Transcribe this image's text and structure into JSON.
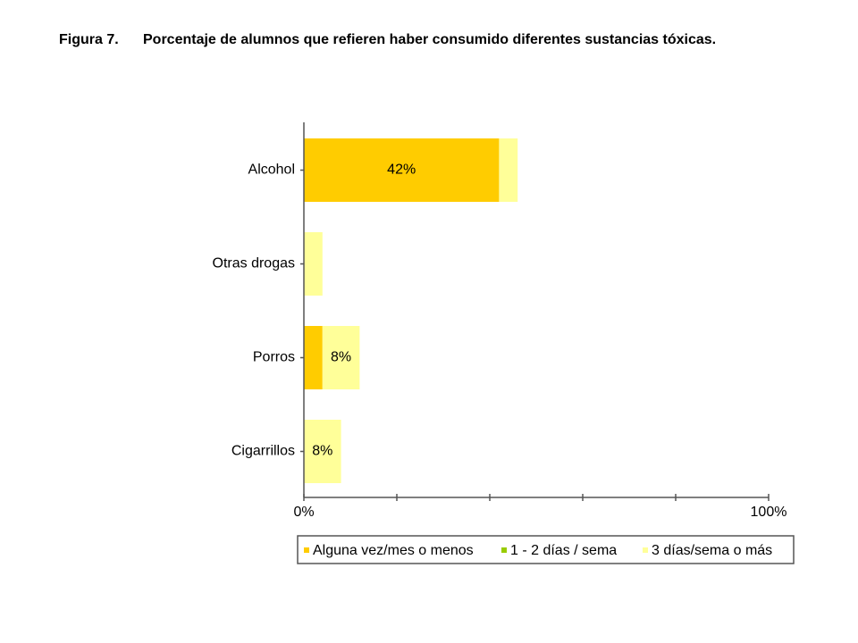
{
  "chart_data": {
    "type": "stacked-barh",
    "figure_label": "Figura 7.",
    "title": "Porcentaje de alumnos que refieren haber consumido diferentes sustancias tóxicas.",
    "categories": [
      "Alcohol",
      "Otras drogas",
      "Porros",
      "Cigarrillos"
    ],
    "series": [
      {
        "name": "Alguna vez/mes o menos",
        "color": "#ffcc00",
        "values": [
          42,
          0,
          4,
          0
        ],
        "value_labels": [
          "42%",
          null,
          null,
          null
        ]
      },
      {
        "name": "1 - 2 días / sema",
        "color": "#99cc00",
        "values": [
          0,
          0,
          0,
          0
        ]
      },
      {
        "name": "3 días/sema o más",
        "color": "#ffff99",
        "values": [
          4,
          4,
          8,
          8
        ],
        "value_labels": [
          null,
          null,
          "8%",
          "8%"
        ]
      }
    ],
    "xlim": [
      0,
      100
    ],
    "xticks": [
      0,
      20,
      40,
      60,
      80,
      100
    ],
    "xtick_labels": [
      {
        "value": 0,
        "label": "0%"
      },
      {
        "value": 100,
        "label": "100%"
      }
    ],
    "legend": "bottom"
  }
}
